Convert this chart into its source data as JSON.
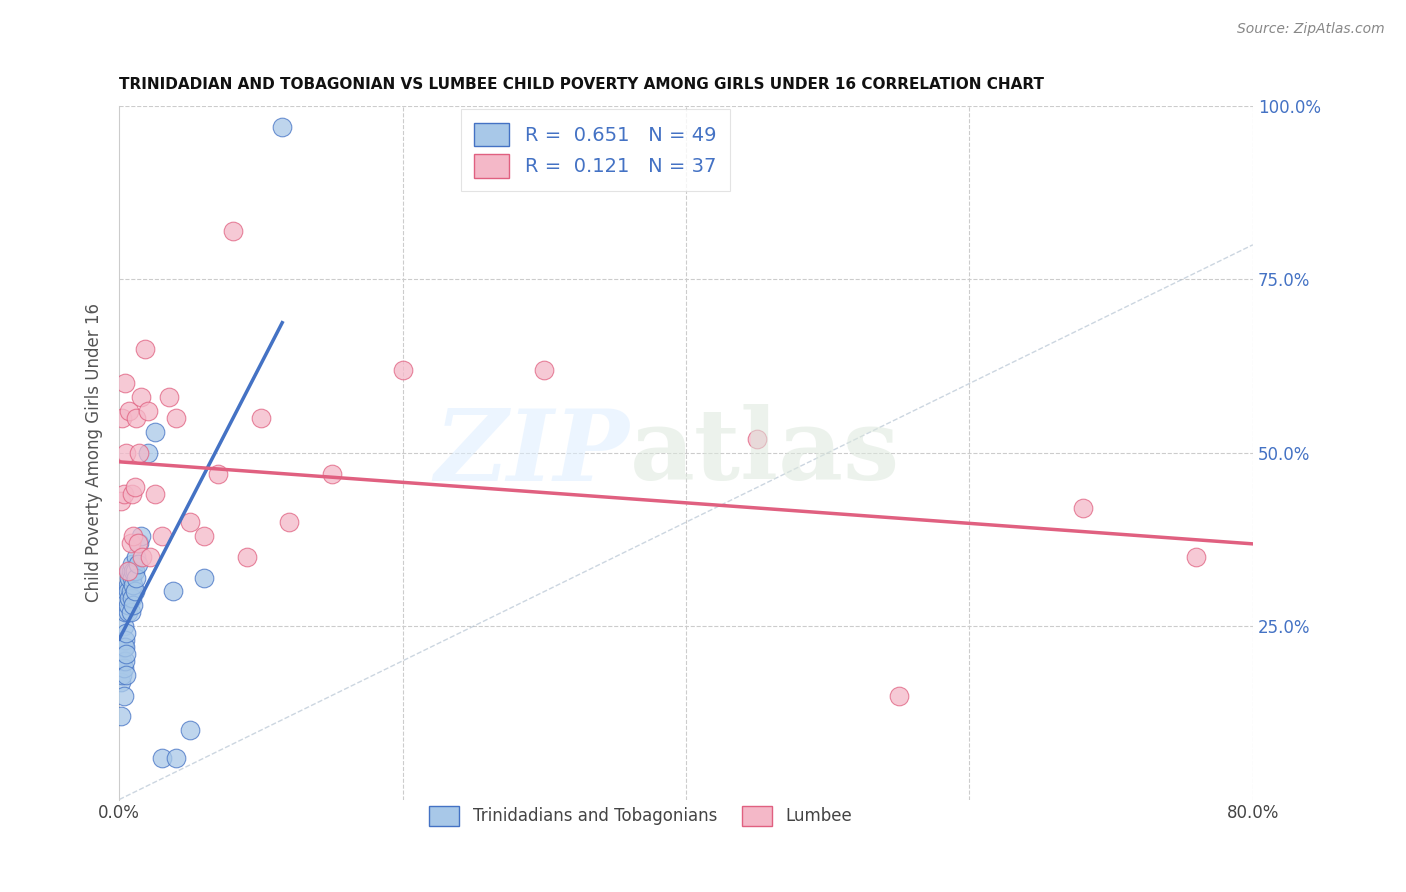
{
  "title": "TRINIDADIAN AND TOBAGONIAN VS LUMBEE CHILD POVERTY AMONG GIRLS UNDER 16 CORRELATION CHART",
  "source": "Source: ZipAtlas.com",
  "ylabel": "Child Poverty Among Girls Under 16",
  "xlim": [
    0.0,
    0.8
  ],
  "ylim": [
    0.0,
    1.0
  ],
  "R_blue": 0.651,
  "N_blue": 49,
  "R_pink": 0.121,
  "N_pink": 37,
  "blue_color": "#a8c8e8",
  "pink_color": "#f4b8c8",
  "blue_line_color": "#4472c4",
  "pink_line_color": "#e06080",
  "legend_labels": [
    "Trinidadians and Tobagonians",
    "Lumbee"
  ],
  "blue_scatter_x": [
    0.001,
    0.001,
    0.002,
    0.002,
    0.002,
    0.003,
    0.003,
    0.003,
    0.003,
    0.004,
    0.004,
    0.004,
    0.004,
    0.005,
    0.005,
    0.005,
    0.005,
    0.005,
    0.006,
    0.006,
    0.006,
    0.006,
    0.007,
    0.007,
    0.007,
    0.008,
    0.008,
    0.008,
    0.009,
    0.009,
    0.009,
    0.01,
    0.01,
    0.01,
    0.011,
    0.011,
    0.012,
    0.012,
    0.013,
    0.014,
    0.015,
    0.02,
    0.025,
    0.03,
    0.04,
    0.05,
    0.06,
    0.115,
    0.038
  ],
  "blue_scatter_y": [
    0.12,
    0.17,
    0.18,
    0.2,
    0.22,
    0.15,
    0.19,
    0.22,
    0.25,
    0.2,
    0.23,
    0.22,
    0.27,
    0.18,
    0.21,
    0.24,
    0.29,
    0.3,
    0.27,
    0.31,
    0.28,
    0.3,
    0.29,
    0.32,
    0.33,
    0.27,
    0.3,
    0.33,
    0.29,
    0.32,
    0.34,
    0.28,
    0.31,
    0.33,
    0.3,
    0.33,
    0.32,
    0.35,
    0.34,
    0.37,
    0.38,
    0.5,
    0.53,
    0.06,
    0.06,
    0.1,
    0.32,
    0.97,
    0.3
  ],
  "pink_scatter_x": [
    0.001,
    0.002,
    0.003,
    0.004,
    0.005,
    0.006,
    0.007,
    0.008,
    0.009,
    0.01,
    0.011,
    0.012,
    0.013,
    0.014,
    0.015,
    0.016,
    0.018,
    0.02,
    0.022,
    0.025,
    0.03,
    0.035,
    0.04,
    0.05,
    0.06,
    0.07,
    0.08,
    0.09,
    0.1,
    0.12,
    0.15,
    0.2,
    0.3,
    0.45,
    0.55,
    0.68,
    0.76
  ],
  "pink_scatter_y": [
    0.43,
    0.55,
    0.44,
    0.6,
    0.5,
    0.33,
    0.56,
    0.37,
    0.44,
    0.38,
    0.45,
    0.55,
    0.37,
    0.5,
    0.58,
    0.35,
    0.65,
    0.56,
    0.35,
    0.44,
    0.38,
    0.58,
    0.55,
    0.4,
    0.38,
    0.47,
    0.82,
    0.35,
    0.55,
    0.4,
    0.47,
    0.62,
    0.62,
    0.52,
    0.15,
    0.42,
    0.35
  ]
}
